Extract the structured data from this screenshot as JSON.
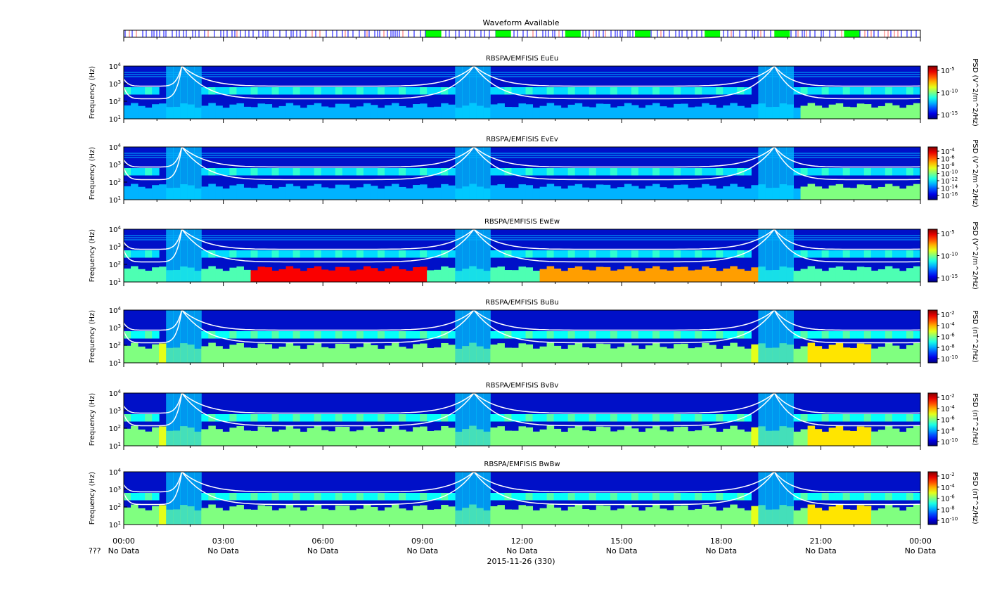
{
  "waveform": {
    "title": "Waveform Available"
  },
  "colors": {
    "waveform_mark": "#0000ff",
    "waveform_burst": "#00ff00",
    "harmonic_line": "#ffffff"
  },
  "chart_data": [
    {
      "type": "heatmap",
      "title": "RBSPA/EMFISIS  EuEu",
      "ylabel": "Frequency (Hz)",
      "yscale": "log",
      "yticks": [
        "10^4",
        "10^3",
        "10^2",
        "10^1"
      ],
      "ylim": [
        10,
        10000
      ],
      "colorbar_label": "PSD (V^2/m^2/Hz)",
      "colorbar_ticks": [
        "10^-5",
        "10^-10",
        "10^-15"
      ],
      "floor": 1.0
    },
    {
      "type": "heatmap",
      "title": "RBSPA/EMFISIS  EvEv",
      "ylabel": "Frequency (Hz)",
      "yscale": "log",
      "yticks": [
        "10^4",
        "10^3",
        "10^2",
        "10^1"
      ],
      "ylim": [
        10,
        10000
      ],
      "colorbar_label": "PSD (V^2/m^2/Hz)",
      "colorbar_ticks": [
        "10^-4",
        "10^-6",
        "10^-8",
        "10^-10",
        "10^-12",
        "10^-14",
        "10^-16"
      ],
      "floor": 1.0
    },
    {
      "type": "heatmap",
      "title": "RBSPA/EMFISIS  EwEw",
      "ylabel": "Frequency (Hz)",
      "yscale": "log",
      "yticks": [
        "10^4",
        "10^3",
        "10^2",
        "10^1"
      ],
      "ylim": [
        10,
        10000
      ],
      "colorbar_label": "PSD (V^2/m^2/Hz)",
      "colorbar_ticks": [
        "10^-5",
        "10^-10",
        "10^-15"
      ],
      "floor": 2.0
    },
    {
      "type": "heatmap",
      "title": "RBSPA/EMFISIS  BuBu",
      "ylabel": "Frequency (Hz)",
      "yscale": "log",
      "yticks": [
        "10^4",
        "10^3",
        "10^2",
        "10^1"
      ],
      "ylim": [
        10,
        10000
      ],
      "colorbar_label": "PSD (nT^2/Hz)",
      "colorbar_ticks": [
        "10^-2",
        "10^-4",
        "10^-6",
        "10^-8",
        "10^-10"
      ],
      "floor": 0.0
    },
    {
      "type": "heatmap",
      "title": "RBSPA/EMFISIS  BvBv",
      "ylabel": "Frequency (Hz)",
      "yscale": "log",
      "yticks": [
        "10^4",
        "10^3",
        "10^2",
        "10^1"
      ],
      "ylim": [
        10,
        10000
      ],
      "colorbar_label": "PSD (nT^2/Hz)",
      "colorbar_ticks": [
        "10^-2",
        "10^-4",
        "10^-6",
        "10^-8",
        "10^-10"
      ],
      "floor": 0.0
    },
    {
      "type": "heatmap",
      "title": "RBSPA/EMFISIS  BwBw",
      "ylabel": "Frequency (Hz)",
      "yscale": "log",
      "yticks": [
        "10^4",
        "10^3",
        "10^2",
        "10^1"
      ],
      "ylim": [
        10,
        10000
      ],
      "colorbar_label": "PSD (nT^2/Hz)",
      "colorbar_ticks": [
        "10^-2",
        "10^-4",
        "10^-6",
        "10^-8",
        "10^-10"
      ],
      "floor": 0.0
    }
  ],
  "x_axis": {
    "ticks": [
      "00:00",
      "03:00",
      "06:00",
      "09:00",
      "12:00",
      "15:00",
      "18:00",
      "21:00",
      "00:00"
    ],
    "sublabels": [
      "No Data",
      "No Data",
      "No Data",
      "No Data",
      "No Data",
      "No Data",
      "No Data",
      "No Data",
      "No Data"
    ],
    "row_prefix": "???",
    "date_label": "2015-11-26 (330)",
    "perigee_hours": [
      1.75,
      10.55,
      19.6
    ]
  }
}
